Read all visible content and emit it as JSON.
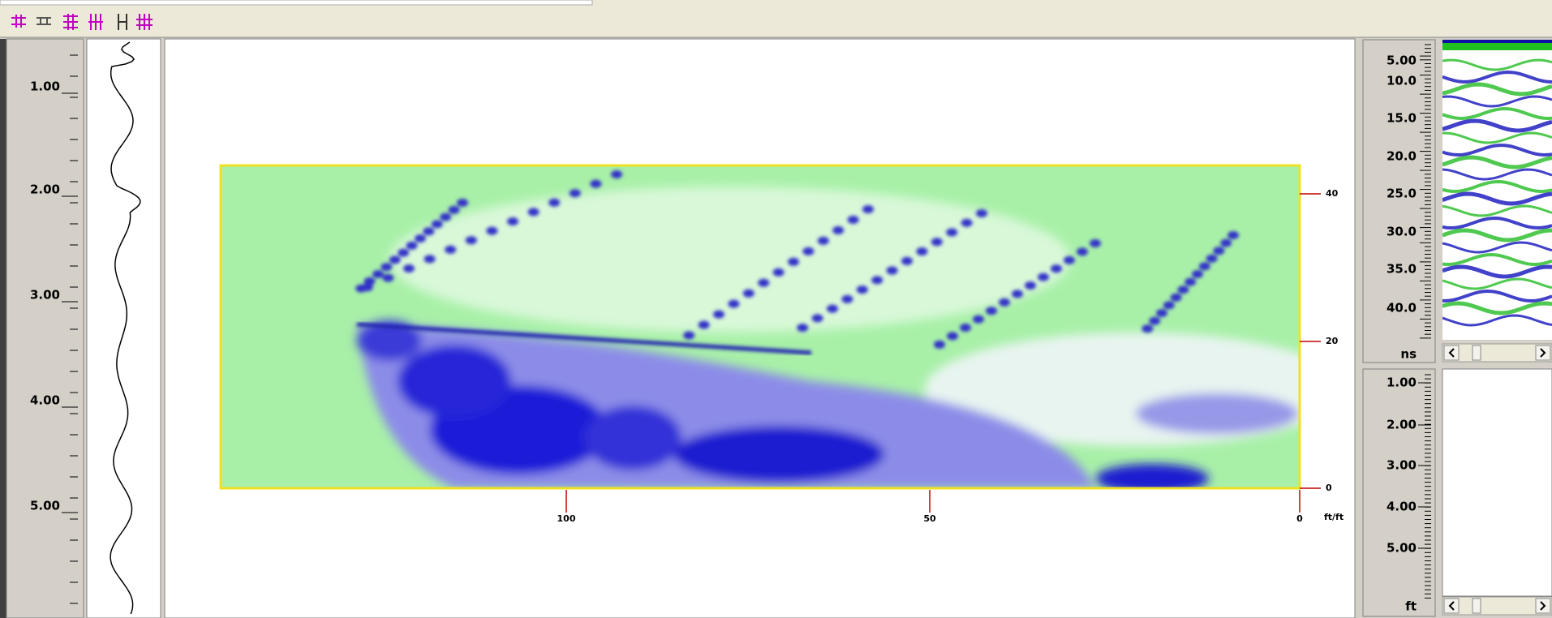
{
  "depth_ruler": {
    "labels": [
      "1.00",
      "2.00",
      "3.00",
      "4.00",
      "5.00"
    ]
  },
  "plan_view": {
    "y_labels": [
      "40",
      "20",
      "0"
    ],
    "x_labels": [
      "100",
      "50",
      "0"
    ],
    "x_unit": "ft/ft"
  },
  "time_ruler": {
    "labels": [
      "5.00",
      "10.0",
      "15.0",
      "20.0",
      "25.0",
      "30.0",
      "35.0",
      "40.0"
    ],
    "unit": "ns"
  },
  "distance_ruler": {
    "labels": [
      "1.00",
      "2.00",
      "3.00",
      "4.00",
      "5.00"
    ],
    "unit": "ft"
  }
}
